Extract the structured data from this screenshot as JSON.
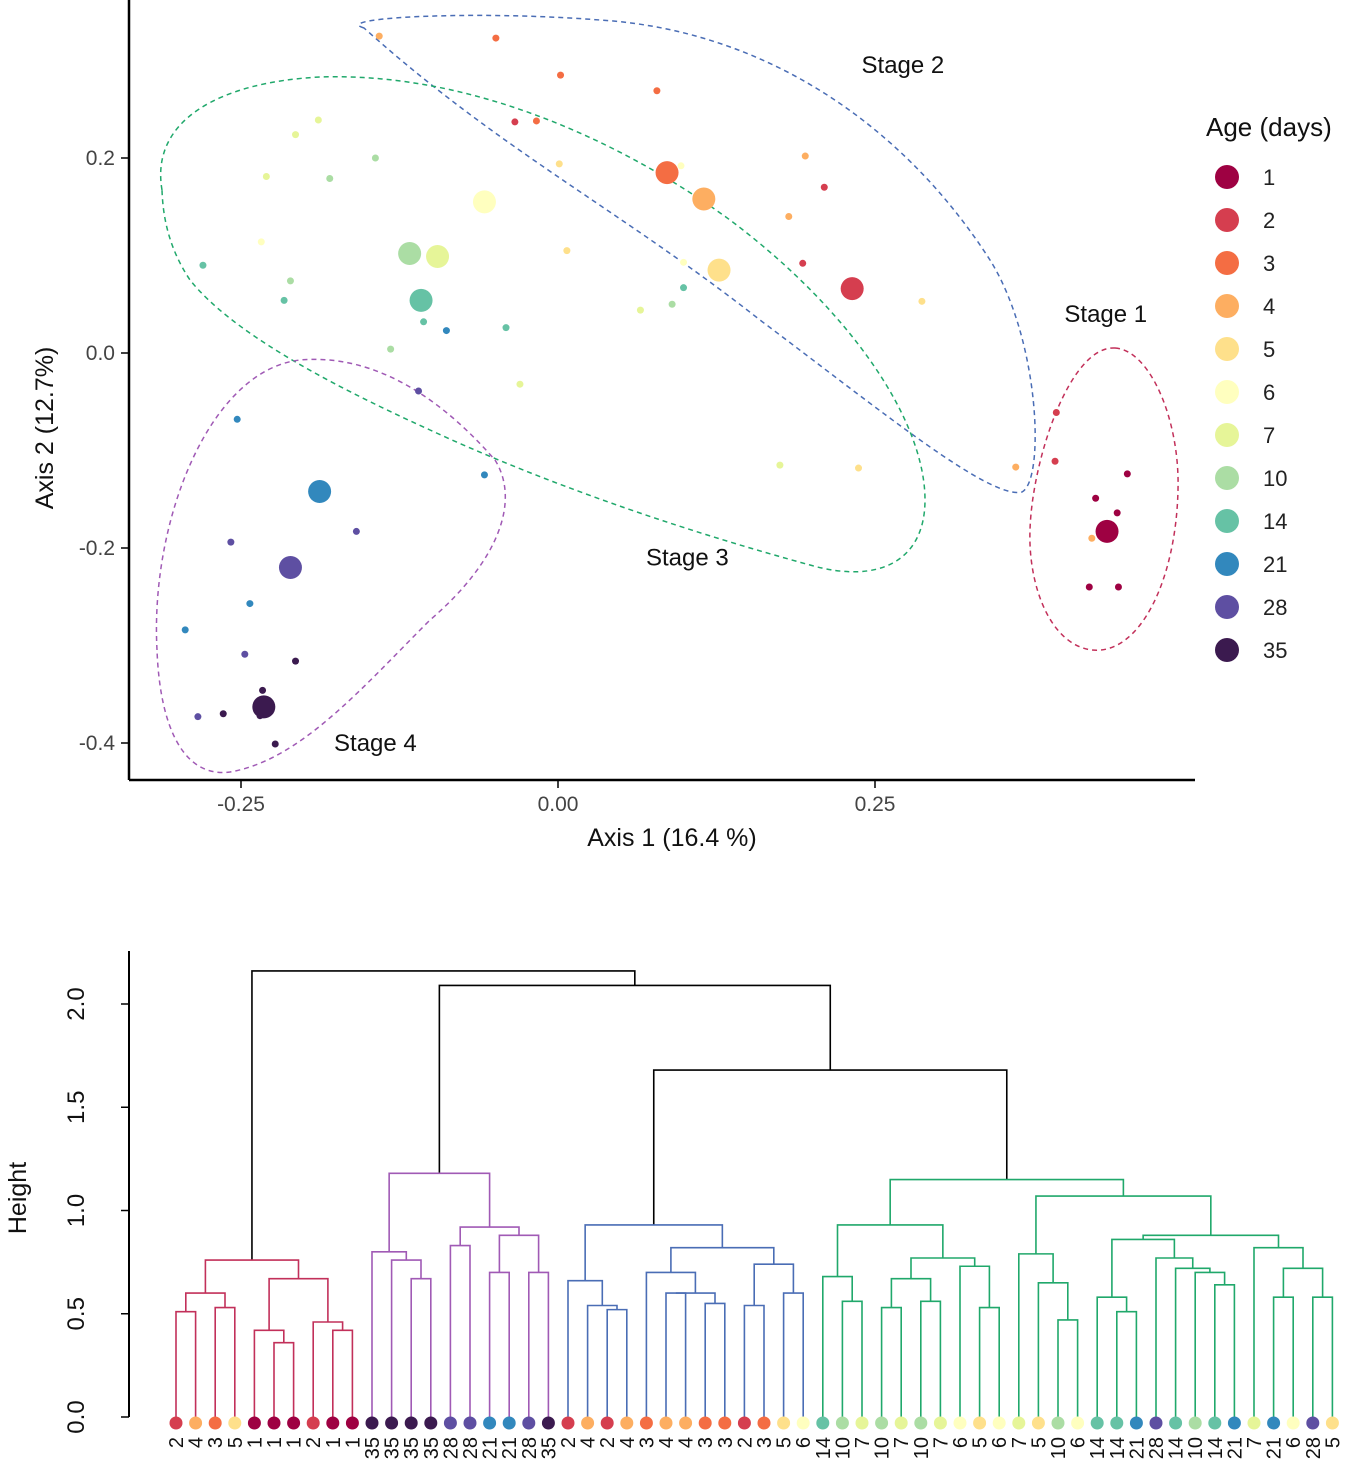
{
  "chart_data": [
    {
      "type": "scatter",
      "title": "",
      "xlabel": "Axis 1 (16.4 %)",
      "ylabel": "Axis 2 (12.7%)",
      "xlim": [
        -0.33,
        0.495
      ],
      "ylim": [
        -0.435,
        0.36
      ],
      "xticks": [
        -0.25,
        0.0,
        0.25
      ],
      "xtick_labels": [
        "-0.25",
        "0.00",
        "0.25"
      ],
      "yticks": [
        0.2,
        0.0,
        -0.2,
        -0.4
      ],
      "ytick_labels": [
        "0.2",
        "0.0",
        "-0.2",
        "-0.4"
      ],
      "grid": false,
      "legend": {
        "title": "Age (days)",
        "placement": "right",
        "entries": [
          "1",
          "2",
          "3",
          "4",
          "5",
          "6",
          "7",
          "10",
          "14",
          "21",
          "28",
          "35"
        ],
        "colors": [
          "#9E0142",
          "#D53E4F",
          "#F46D43",
          "#FDAE61",
          "#FEE08B",
          "#FFFFBF",
          "#E6F598",
          "#ABDDA4",
          "#66C2A5",
          "#3288BD",
          "#5E4FA2",
          "#3B1A4F"
        ]
      },
      "stage_labels": [
        {
          "text": "Stage 1",
          "x": 0.432,
          "y": 0.032,
          "color": "#C2305A"
        },
        {
          "text": "Stage 2",
          "x": 0.272,
          "y": 0.287,
          "color": "#4A6DB5"
        },
        {
          "text": "Stage 3",
          "x": 0.102,
          "y": -0.218,
          "color": "#20A86B"
        },
        {
          "text": "Stage 4",
          "x": -0.144,
          "y": -0.408,
          "color": "#A05AB5"
        }
      ],
      "points": [
        {
          "x": -0.141,
          "y": 0.325,
          "age": 4,
          "size": "small"
        },
        {
          "x": -0.049,
          "y": 0.323,
          "age": 3,
          "size": "small"
        },
        {
          "x": 0.002,
          "y": 0.285,
          "age": 3,
          "size": "small"
        },
        {
          "x": 0.078,
          "y": 0.269,
          "age": 3,
          "size": "small"
        },
        {
          "x": -0.034,
          "y": 0.237,
          "age": 2,
          "size": "small"
        },
        {
          "x": -0.017,
          "y": 0.238,
          "age": 3,
          "size": "small"
        },
        {
          "x": 0.097,
          "y": 0.192,
          "age": 6,
          "size": "small"
        },
        {
          "x": 0.195,
          "y": 0.202,
          "age": 4,
          "size": "small"
        },
        {
          "x": 0.21,
          "y": 0.17,
          "age": 2,
          "size": "small"
        },
        {
          "x": 0.182,
          "y": 0.14,
          "age": 4,
          "size": "small"
        },
        {
          "x": 0.086,
          "y": 0.185,
          "age": 3,
          "size": "large"
        },
        {
          "x": 0.115,
          "y": 0.158,
          "age": 4,
          "size": "large"
        },
        {
          "x": 0.127,
          "y": 0.085,
          "age": 5,
          "size": "large"
        },
        {
          "x": 0.232,
          "y": 0.066,
          "age": 2,
          "size": "large"
        },
        {
          "x": 0.193,
          "y": 0.092,
          "age": 2,
          "size": "small"
        },
        {
          "x": 0.287,
          "y": 0.053,
          "age": 5,
          "size": "small"
        },
        {
          "x": 0.099,
          "y": 0.093,
          "age": 6,
          "size": "small"
        },
        {
          "x": 0.007,
          "y": 0.105,
          "age": 5,
          "size": "small"
        },
        {
          "x": 0.001,
          "y": 0.194,
          "age": 5,
          "size": "small"
        },
        {
          "x": -0.207,
          "y": 0.224,
          "age": 7,
          "size": "small"
        },
        {
          "x": -0.189,
          "y": 0.239,
          "age": 7,
          "size": "small"
        },
        {
          "x": -0.144,
          "y": 0.2,
          "age": 10,
          "size": "small"
        },
        {
          "x": -0.23,
          "y": 0.181,
          "age": 7,
          "size": "small"
        },
        {
          "x": -0.18,
          "y": 0.179,
          "age": 10,
          "size": "small"
        },
        {
          "x": -0.234,
          "y": 0.114,
          "age": 6,
          "size": "small"
        },
        {
          "x": -0.28,
          "y": 0.09,
          "age": 14,
          "size": "small"
        },
        {
          "x": -0.211,
          "y": 0.074,
          "age": 10,
          "size": "small"
        },
        {
          "x": -0.216,
          "y": 0.054,
          "age": 14,
          "size": "small"
        },
        {
          "x": -0.058,
          "y": 0.155,
          "age": 6,
          "size": "large"
        },
        {
          "x": -0.117,
          "y": 0.102,
          "age": 10,
          "size": "large"
        },
        {
          "x": -0.095,
          "y": 0.099,
          "age": 7,
          "size": "large"
        },
        {
          "x": -0.108,
          "y": 0.054,
          "age": 14,
          "size": "large"
        },
        {
          "x": -0.106,
          "y": 0.032,
          "age": 14,
          "size": "small"
        },
        {
          "x": -0.088,
          "y": 0.023,
          "age": 21,
          "size": "small"
        },
        {
          "x": -0.041,
          "y": 0.026,
          "age": 14,
          "size": "small"
        },
        {
          "x": 0.065,
          "y": 0.044,
          "age": 7,
          "size": "small"
        },
        {
          "x": 0.09,
          "y": 0.05,
          "age": 10,
          "size": "small"
        },
        {
          "x": 0.099,
          "y": 0.067,
          "age": 14,
          "size": "small"
        },
        {
          "x": -0.132,
          "y": 0.004,
          "age": 10,
          "size": "small"
        },
        {
          "x": -0.03,
          "y": -0.032,
          "age": 7,
          "size": "small"
        },
        {
          "x": 0.175,
          "y": -0.115,
          "age": 7,
          "size": "small"
        },
        {
          "x": 0.237,
          "y": -0.118,
          "age": 5,
          "size": "small"
        },
        {
          "x": 0.361,
          "y": -0.117,
          "age": 4,
          "size": "small"
        },
        {
          "x": 0.393,
          "y": -0.061,
          "age": 2,
          "size": "small"
        },
        {
          "x": 0.392,
          "y": -0.111,
          "age": 2,
          "size": "small"
        },
        {
          "x": 0.449,
          "y": -0.124,
          "age": 1,
          "size": "small"
        },
        {
          "x": 0.424,
          "y": -0.149,
          "age": 1,
          "size": "small"
        },
        {
          "x": 0.441,
          "y": -0.164,
          "age": 1,
          "size": "small"
        },
        {
          "x": 0.433,
          "y": -0.183,
          "age": 1,
          "size": "large"
        },
        {
          "x": 0.421,
          "y": -0.19,
          "age": 4,
          "size": "small"
        },
        {
          "x": 0.419,
          "y": -0.24,
          "age": 1,
          "size": "small"
        },
        {
          "x": 0.442,
          "y": -0.24,
          "age": 1,
          "size": "small"
        },
        {
          "x": -0.11,
          "y": -0.039,
          "age": 28,
          "size": "small"
        },
        {
          "x": -0.058,
          "y": -0.125,
          "age": 21,
          "size": "small"
        },
        {
          "x": -0.253,
          "y": -0.068,
          "age": 21,
          "size": "small"
        },
        {
          "x": -0.188,
          "y": -0.142,
          "age": 21,
          "size": "large"
        },
        {
          "x": -0.159,
          "y": -0.183,
          "age": 28,
          "size": "small"
        },
        {
          "x": -0.258,
          "y": -0.194,
          "age": 28,
          "size": "small"
        },
        {
          "x": -0.211,
          "y": -0.22,
          "age": 28,
          "size": "large"
        },
        {
          "x": -0.243,
          "y": -0.257,
          "age": 21,
          "size": "small"
        },
        {
          "x": -0.294,
          "y": -0.284,
          "age": 21,
          "size": "small"
        },
        {
          "x": -0.247,
          "y": -0.309,
          "age": 28,
          "size": "small"
        },
        {
          "x": -0.207,
          "y": -0.316,
          "age": 35,
          "size": "small"
        },
        {
          "x": -0.233,
          "y": -0.346,
          "age": 35,
          "size": "small"
        },
        {
          "x": -0.232,
          "y": -0.363,
          "age": 35,
          "size": "large"
        },
        {
          "x": -0.264,
          "y": -0.37,
          "age": 35,
          "size": "small"
        },
        {
          "x": -0.284,
          "y": -0.373,
          "age": 28,
          "size": "small"
        },
        {
          "x": -0.235,
          "y": -0.372,
          "age": 35,
          "size": "small"
        },
        {
          "x": -0.223,
          "y": -0.401,
          "age": 35,
          "size": "small"
        }
      ]
    },
    {
      "type": "dendrogram",
      "title": "",
      "ylabel": "Height",
      "ylim": [
        0,
        2.3
      ],
      "yticks": [
        0.0,
        0.5,
        1.0,
        1.5,
        2.0
      ],
      "ytick_labels": [
        "0.0",
        "0.5",
        "1.0",
        "1.5",
        "2.0"
      ],
      "cluster_colors": {
        "stage1": "#C2305A",
        "stage4": "#A05AB5",
        "stage2": "#4A6DB5",
        "stage3": "#20A86B",
        "root": "#000000"
      },
      "leaves": [
        "2",
        "4",
        "3",
        "5",
        "1",
        "1",
        "1",
        "2",
        "1",
        "1",
        "35",
        "35",
        "35",
        "35",
        "28",
        "28",
        "21",
        "21",
        "28",
        "35",
        "2",
        "4",
        "2",
        "4",
        "3",
        "4",
        "4",
        "3",
        "3",
        "2",
        "3",
        "5",
        "6",
        "14",
        "10",
        "7",
        "10",
        "7",
        "10",
        "7",
        "6",
        "5",
        "6",
        "7",
        "5",
        "10",
        "6",
        "14",
        "14",
        "21",
        "28",
        "14",
        "10",
        "14",
        "21",
        "7",
        "21",
        "6",
        "28",
        "5"
      ],
      "merge_heights": {
        "root": 2.16,
        "second": 2.09,
        "third": 1.68,
        "stage1": 0.76,
        "stage4": 1.18,
        "stage2": 0.93,
        "stage3": 1.15
      }
    }
  ]
}
